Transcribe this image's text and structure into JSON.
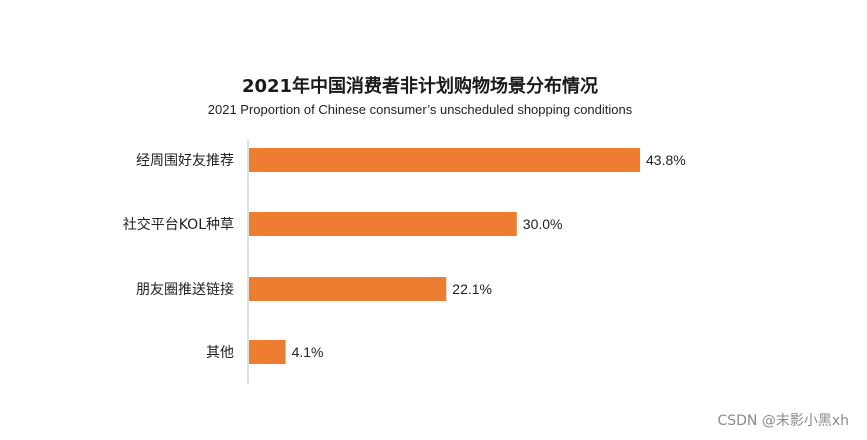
{
  "chart_data": {
    "type": "bar",
    "orientation": "horizontal",
    "title": "2021年中国消费者非计划购物场景分布情况",
    "subtitle": "2021 Proportion of Chinese consumer’s unscheduled shopping conditions",
    "categories": [
      "经周围好友推荐",
      "社交平台KOL种草",
      "朋友圈推送链接",
      "其他"
    ],
    "values": [
      43.8,
      30.0,
      22.1,
      4.1
    ],
    "value_labels": [
      "43.8%",
      "30.0%",
      "22.1%",
      "4.1%"
    ],
    "value_unit": "%",
    "xlim": [
      0,
      50
    ],
    "grid": false,
    "legend": "none",
    "bar_color": "#ED7D31",
    "axis_color": "#BFBFBF"
  },
  "watermark": "CSDN @末影小黑xh"
}
